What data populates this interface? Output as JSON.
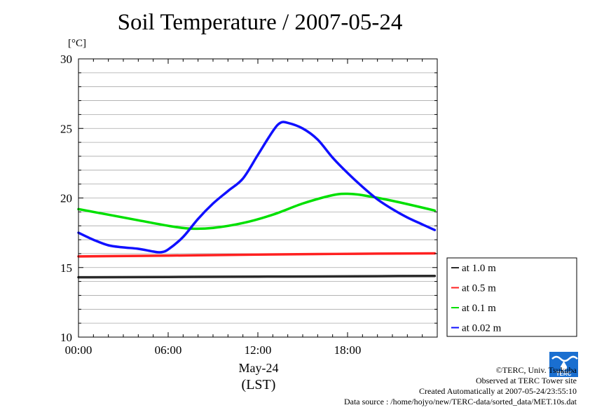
{
  "chart_data": {
    "type": "line",
    "title": "Soil Temperature / 2007-05-24",
    "ylabel": "[°C]",
    "xlabel_date": "May-24",
    "xlabel_tz": "(LST)",
    "x_unit": "hour",
    "xlim": [
      0,
      24
    ],
    "ylim": [
      10,
      30
    ],
    "x_ticks": [
      {
        "value": 0,
        "label": "00:00"
      },
      {
        "value": 6,
        "label": "06:00"
      },
      {
        "value": 12,
        "label": "12:00"
      },
      {
        "value": 18,
        "label": "18:00"
      }
    ],
    "y_ticks": [
      {
        "value": 10,
        "label": "10"
      },
      {
        "value": 15,
        "label": "15"
      },
      {
        "value": 20,
        "label": "20"
      },
      {
        "value": 25,
        "label": "25"
      },
      {
        "value": 30,
        "label": "30"
      }
    ],
    "grid": true,
    "legend_position": "right, outside, lower",
    "series": [
      {
        "name": "at 1.0 m",
        "color": "#2a2a2a",
        "x": [
          0,
          4,
          8,
          12,
          16,
          20,
          23.83
        ],
        "y": [
          14.3,
          14.31,
          14.33,
          14.35,
          14.36,
          14.38,
          14.4
        ]
      },
      {
        "name": "at 0.5 m",
        "color": "#ff2020",
        "x": [
          0,
          4,
          8,
          12,
          16,
          20,
          23.83
        ],
        "y": [
          15.8,
          15.84,
          15.88,
          15.93,
          15.97,
          16.0,
          16.02
        ]
      },
      {
        "name": "at 0.1 m",
        "color": "#00e000",
        "x": [
          0,
          2,
          4,
          6,
          7.5,
          9,
          11,
          13,
          15,
          17,
          18,
          19,
          21,
          23.83
        ],
        "y": [
          19.2,
          18.8,
          18.4,
          18.0,
          17.8,
          17.85,
          18.2,
          18.8,
          19.6,
          20.2,
          20.3,
          20.2,
          19.8,
          19.1
        ]
      },
      {
        "name": "at 0.02 m",
        "color": "#1010ff",
        "x": [
          0,
          1,
          2,
          3,
          4,
          5,
          5.5,
          6,
          7,
          8,
          9,
          10,
          11,
          12,
          13,
          13.5,
          14,
          15,
          16,
          17,
          18,
          19,
          20,
          21,
          22,
          23,
          23.83
        ],
        "y": [
          17.5,
          17.0,
          16.6,
          16.45,
          16.35,
          16.15,
          16.1,
          16.3,
          17.2,
          18.5,
          19.6,
          20.5,
          21.4,
          23.1,
          24.8,
          25.4,
          25.4,
          25.0,
          24.2,
          22.9,
          21.8,
          20.8,
          19.9,
          19.2,
          18.6,
          18.1,
          17.7
        ]
      }
    ]
  },
  "credits": {
    "copyright": "©TERC, Univ. Tsukuba",
    "observed": "Observed at TERC Tower site",
    "created": "Created Automatically at 2007-05-24/23:55:10",
    "source": "Data source : /home/hojyo/new/TERC-data/sorted_data/MET.10s.dat"
  },
  "logo": {
    "text": "TERC",
    "color": "#1a6fd0"
  }
}
